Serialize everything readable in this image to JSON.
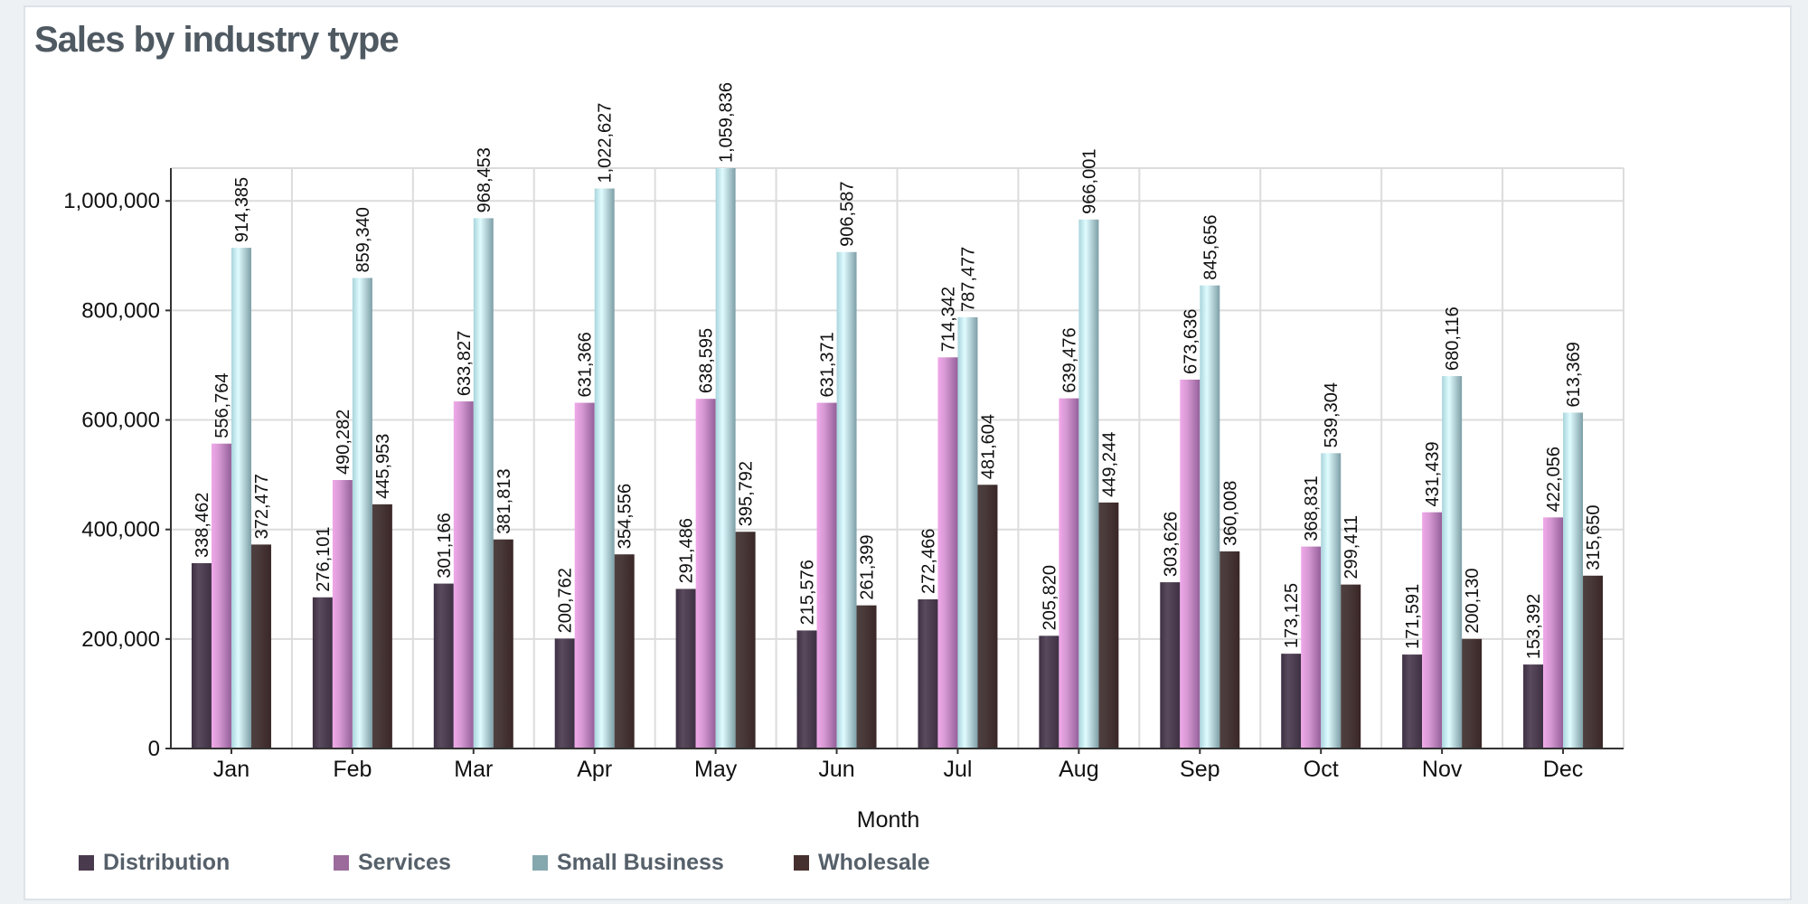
{
  "title": "Sales by industry type",
  "chart_data": {
    "type": "bar",
    "title": "Sales by industry type",
    "xlabel": "Month",
    "ylabel": "",
    "ylim": [
      0,
      1059836
    ],
    "yticks": [
      0,
      200000,
      400000,
      600000,
      800000,
      1000000
    ],
    "ytick_labels": [
      "0",
      "200,000",
      "400,000",
      "600,000",
      "800,000",
      "1,000,000"
    ],
    "grid": true,
    "legend_position": "bottom-left",
    "categories": [
      "Jan",
      "Feb",
      "Mar",
      "Apr",
      "May",
      "Jun",
      "Jul",
      "Aug",
      "Sep",
      "Oct",
      "Nov",
      "Dec"
    ],
    "series": [
      {
        "name": "Distribution",
        "color": "#4a3a4e",
        "values": [
          338462,
          276101,
          301166,
          200762,
          291486,
          215576,
          272466,
          205820,
          303626,
          173125,
          171591,
          153392
        ]
      },
      {
        "name": "Services",
        "color": "#9b6b9b",
        "values": [
          556764,
          490282,
          633827,
          631366,
          638595,
          631371,
          714342,
          639476,
          673636,
          368831,
          431439,
          422056
        ]
      },
      {
        "name": "Small Business",
        "color": "#85a8ae",
        "values": [
          914385,
          859340,
          968453,
          1022627,
          1059836,
          906587,
          787477,
          966001,
          845656,
          539304,
          680116,
          613369
        ]
      },
      {
        "name": "Wholesale",
        "color": "#46302f",
        "values": [
          372477,
          445953,
          381813,
          354556,
          395792,
          261399,
          481604,
          449244,
          360008,
          299411,
          200130,
          315650
        ]
      }
    ]
  }
}
